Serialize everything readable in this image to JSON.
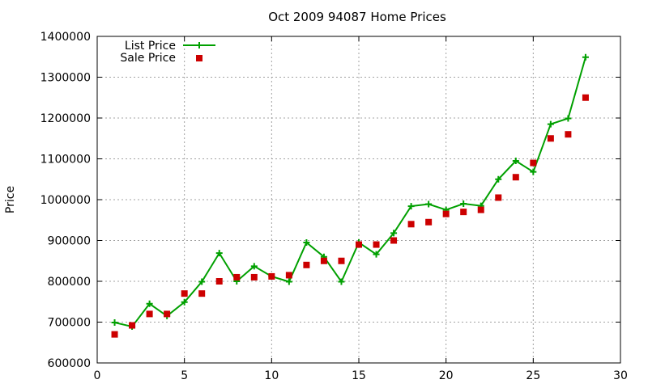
{
  "chart_data": {
    "type": "line",
    "title": "Oct 2009 94087 Home Prices",
    "xlabel": "",
    "ylabel": "Price",
    "xlim": [
      0,
      30
    ],
    "ylim": [
      600000,
      1400000
    ],
    "x_ticks": [
      0,
      5,
      10,
      15,
      20,
      25,
      30
    ],
    "y_ticks": [
      600000,
      700000,
      800000,
      900000,
      1000000,
      1100000,
      1200000,
      1300000,
      1400000
    ],
    "grid": true,
    "legend_position": "top-left",
    "x": [
      1,
      2,
      3,
      4,
      5,
      6,
      7,
      8,
      9,
      10,
      11,
      12,
      13,
      14,
      15,
      16,
      17,
      18,
      19,
      20,
      21,
      22,
      23,
      24,
      25,
      26,
      27,
      28
    ],
    "series": [
      {
        "name": "List Price",
        "style": "line-with-plus-markers",
        "color": "#00a000",
        "values": [
          699000,
          689000,
          745000,
          715000,
          749000,
          799000,
          869000,
          800000,
          837000,
          812000,
          799000,
          895000,
          860000,
          799000,
          895000,
          866000,
          918000,
          984000,
          989000,
          975000,
          990000,
          985000,
          1050000,
          1095000,
          1068000,
          1185000,
          1199000,
          1349000
        ]
      },
      {
        "name": "Sale Price",
        "style": "square-markers",
        "color": "#cc0000",
        "values": [
          670000,
          692000,
          720000,
          720000,
          770000,
          770000,
          800000,
          810000,
          810000,
          812000,
          815000,
          840000,
          850000,
          850000,
          890000,
          890000,
          900000,
          940000,
          945000,
          965000,
          970000,
          975000,
          1005000,
          1055000,
          1090000,
          1150000,
          1160000,
          1250000
        ]
      }
    ]
  }
}
